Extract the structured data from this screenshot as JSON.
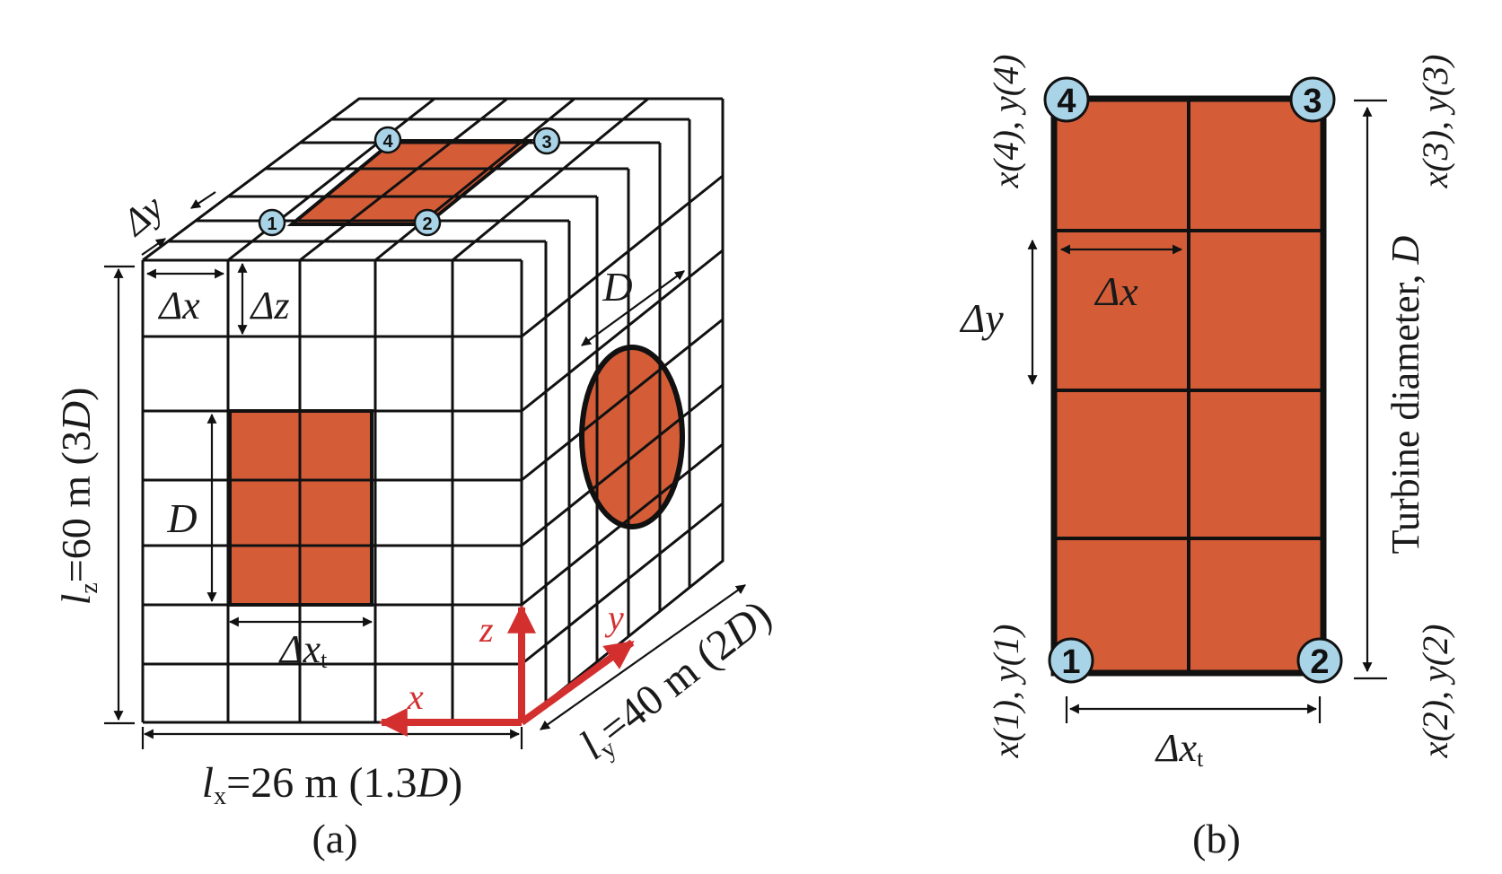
{
  "colors": {
    "fill": "#d45d38",
    "circle": "#a9d3e6",
    "axis": "#d32f2f",
    "line": "#111111"
  },
  "panel_a": {
    "caption": "(a)",
    "corner_labels": [
      "1",
      "2",
      "3",
      "4"
    ],
    "delta_y": "Δy",
    "delta_x": "Δx",
    "delta_z": "Δz",
    "front_D": "D",
    "side_D": "D",
    "delta_xt_base": "Δx",
    "delta_xt_sub": "t",
    "lz": {
      "l": "l",
      "sub": "z",
      "text": "=60 m (3",
      "D": "D",
      "close": ")"
    },
    "lx": {
      "l": "l",
      "sub": "x",
      "text": "=26 m (1.3",
      "D": "D",
      "close": ")"
    },
    "ly": {
      "l": "l",
      "sub": "y",
      "text": "=40 m (2",
      "D": "D",
      "close": ")"
    },
    "axes": {
      "x": "x",
      "y": "y",
      "z": "z"
    }
  },
  "panel_b": {
    "caption": "(b)",
    "corner_labels": [
      "1",
      "2",
      "3",
      "4"
    ],
    "corner4_coord": "x(4), y(4)",
    "corner3_coord": "x(3), y(3)",
    "corner1_coord": "x(1), y(1)",
    "corner2_coord": "x(2), y(2)",
    "delta_x": "Δx",
    "delta_y": "Δy",
    "delta_xt_base": "Δx",
    "delta_xt_sub": "t",
    "turbine_label": "Turbine diameter, ",
    "turbine_D": "D"
  }
}
